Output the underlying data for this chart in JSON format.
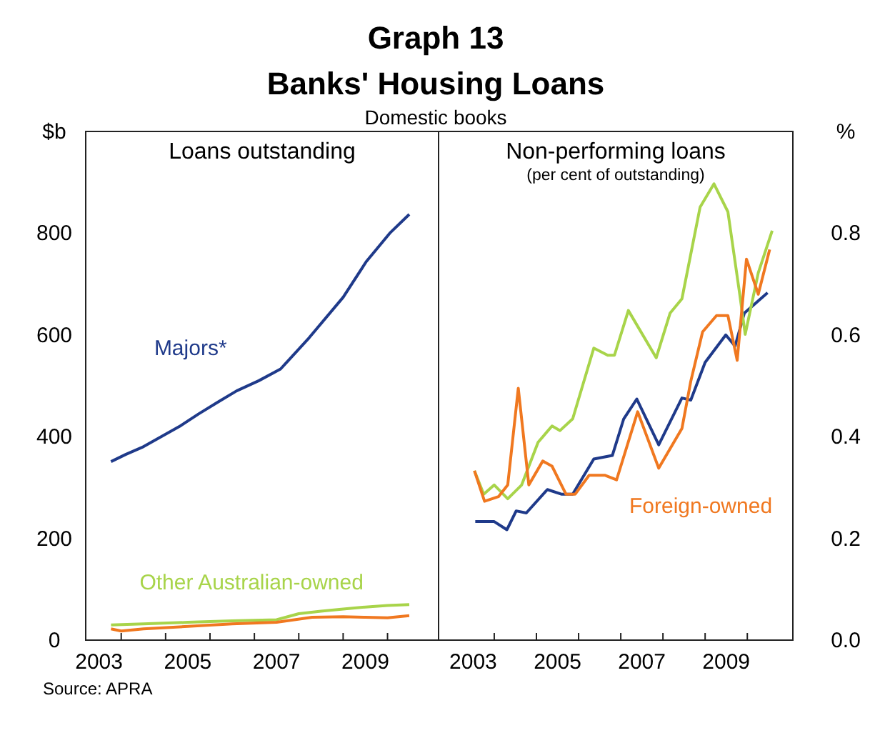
{
  "chart_data": [
    {
      "type": "line",
      "title": "Loans outstanding",
      "ylabel": "$b",
      "annotations": [
        "Graph 13",
        "Banks' Housing Loans",
        "Domestic books",
        "Source: APRA"
      ],
      "xlim": [
        2003.2,
        2011.15
      ],
      "xticks": [
        {
          "value": 2003.5,
          "label": "2003"
        },
        {
          "value": 2004,
          "label": null
        },
        {
          "value": 2005,
          "label": null
        },
        {
          "value": 2005.5,
          "label": "2005"
        },
        {
          "value": 2006,
          "label": null
        },
        {
          "value": 2007,
          "label": null
        },
        {
          "value": 2007.5,
          "label": "2007"
        },
        {
          "value": 2008,
          "label": null
        },
        {
          "value": 2009,
          "label": null
        },
        {
          "value": 2009.5,
          "label": "2009"
        },
        {
          "value": 2010,
          "label": null
        }
      ],
      "ylim": [
        0,
        1000
      ],
      "yticks": [
        0,
        200,
        400,
        600,
        800
      ],
      "grid": false,
      "series": [
        {
          "name": "Majors*",
          "color": "#1f3a8a",
          "x": [
            2003.77,
            2004.1,
            2004.47,
            2004.9,
            2005.33,
            2005.75,
            2006.18,
            2006.6,
            2007.1,
            2007.59,
            2008.23,
            2009.0,
            2009.52,
            2010.05,
            2010.49
          ],
          "values": [
            351,
            365,
            379,
            400,
            421,
            445,
            468,
            490,
            510,
            533,
            594,
            674,
            744,
            800,
            837
          ]
        },
        {
          "name": "Other Australian-owned",
          "color": "#a8d44a",
          "x": [
            2003.77,
            2004.5,
            2005.5,
            2006.5,
            2007.5,
            2008.0,
            2008.5,
            2009.0,
            2009.5,
            2010.0,
            2010.49
          ],
          "values": [
            30,
            32,
            35,
            38,
            40,
            52,
            57,
            61,
            65,
            68,
            70
          ]
        },
        {
          "color": "#f07820",
          "x": [
            2003.77,
            2004.0,
            2004.5,
            2005.5,
            2006.5,
            2007.5,
            2008.3,
            2009.0,
            2009.5,
            2010.0,
            2010.49
          ],
          "values": [
            22,
            18,
            22,
            27,
            32,
            35,
            45,
            46,
            45,
            44,
            48
          ]
        }
      ]
    },
    {
      "type": "line",
      "title": "Non-performing loans",
      "subtitle": "(per cent of outstanding)",
      "y2label": "%",
      "xlim": [
        2002.68,
        2011.08
      ],
      "xticks": [
        {
          "value": 2003.5,
          "label": "2003"
        },
        {
          "value": 2004,
          "label": null
        },
        {
          "value": 2005,
          "label": null
        },
        {
          "value": 2005.5,
          "label": "2005"
        },
        {
          "value": 2006,
          "label": null
        },
        {
          "value": 2007,
          "label": null
        },
        {
          "value": 2007.5,
          "label": "2007"
        },
        {
          "value": 2008,
          "label": null
        },
        {
          "value": 2009,
          "label": null
        },
        {
          "value": 2009.5,
          "label": "2009"
        },
        {
          "value": 2010,
          "label": null
        }
      ],
      "y2lim": [
        0,
        1
      ],
      "y2ticks": [
        {
          "value": 0,
          "label": "0.0"
        },
        0.2,
        0.4,
        0.6,
        0.8
      ],
      "grid": false,
      "series": [
        {
          "color": "#1f3a8a",
          "axis": "y2",
          "x": [
            2003.55,
            2004.0,
            2004.3,
            2004.52,
            2004.76,
            2005.26,
            2005.59,
            2005.86,
            2006.36,
            2006.8,
            2007.07,
            2007.38,
            2007.9,
            2008.45,
            2008.66,
            2009.0,
            2009.49,
            2009.71,
            2009.93,
            2010.48
          ],
          "values": [
            0.233,
            0.233,
            0.217,
            0.254,
            0.25,
            0.296,
            0.287,
            0.287,
            0.356,
            0.363,
            0.435,
            0.474,
            0.384,
            0.476,
            0.472,
            0.546,
            0.6,
            0.578,
            0.643,
            0.683
          ]
        },
        {
          "color": "#a8d44a",
          "axis": "y2",
          "x": [
            2003.53,
            2003.75,
            2004.0,
            2004.32,
            2004.65,
            2005.04,
            2005.37,
            2005.56,
            2005.86,
            2006.36,
            2006.69,
            2006.85,
            2007.18,
            2007.84,
            2008.17,
            2008.45,
            2008.88,
            2009.21,
            2009.54,
            2009.82,
            2009.95,
            2010.26,
            2010.59
          ],
          "values": [
            0.333,
            0.287,
            0.305,
            0.278,
            0.305,
            0.389,
            0.421,
            0.412,
            0.435,
            0.574,
            0.56,
            0.56,
            0.648,
            0.555,
            0.643,
            0.671,
            0.851,
            0.897,
            0.842,
            0.68,
            0.601,
            0.722,
            0.805
          ]
        },
        {
          "name": "Foreign-owned",
          "color": "#f07820",
          "axis": "y2",
          "x": [
            2003.53,
            2003.77,
            2004.1,
            2004.32,
            2004.57,
            2004.82,
            2005.15,
            2005.37,
            2005.7,
            2005.92,
            2006.25,
            2006.63,
            2006.9,
            2007.4,
            2007.9,
            2008.45,
            2008.66,
            2008.94,
            2009.27,
            2009.54,
            2009.76,
            2009.98,
            2010.26,
            2010.53
          ],
          "values": [
            0.333,
            0.273,
            0.282,
            0.305,
            0.495,
            0.305,
            0.352,
            0.342,
            0.287,
            0.287,
            0.324,
            0.324,
            0.315,
            0.449,
            0.338,
            0.416,
            0.509,
            0.606,
            0.638,
            0.638,
            0.55,
            0.749,
            0.68,
            0.768
          ]
        }
      ]
    }
  ]
}
